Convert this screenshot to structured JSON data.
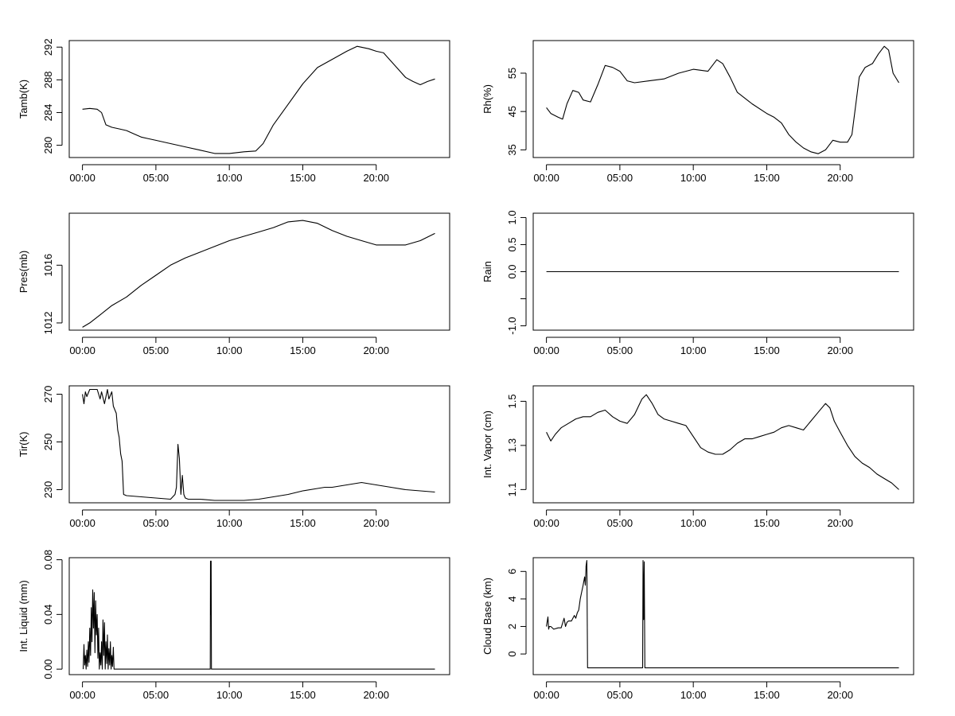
{
  "x_tick_labels": [
    "00:00",
    "05:00",
    "10:00",
    "15:00",
    "20:00"
  ],
  "chart_data": [
    {
      "type": "line",
      "ylabel": "Tamb(K)",
      "x_unit": "hours",
      "xlim": [
        -0.9,
        25.0
      ],
      "ylim": [
        278.5,
        292.8
      ],
      "yticks": [
        280,
        284,
        288,
        292
      ],
      "x": [
        0,
        0.5,
        1.0,
        1.3,
        1.6,
        2.0,
        2.5,
        3.0,
        3.5,
        4.0,
        4.5,
        5.0,
        6.0,
        7.0,
        8.0,
        9.0,
        10.0,
        11.0,
        11.8,
        12.3,
        13.0,
        14.0,
        15.0,
        16.0,
        17.0,
        18.0,
        18.7,
        19.5,
        20.0,
        20.5,
        21.0,
        21.5,
        22.0,
        22.5,
        23.0,
        23.5,
        24.0
      ],
      "y": [
        284.4,
        284.5,
        284.4,
        284.0,
        282.5,
        282.2,
        282.0,
        281.8,
        281.4,
        281.0,
        280.8,
        280.6,
        280.2,
        279.8,
        279.4,
        279.0,
        279.0,
        279.2,
        279.3,
        280.2,
        282.5,
        285.0,
        287.5,
        289.5,
        290.5,
        291.5,
        292.1,
        291.8,
        291.5,
        291.3,
        290.3,
        289.3,
        288.3,
        287.8,
        287.4,
        287.8,
        288.1
      ]
    },
    {
      "type": "line",
      "ylabel": "Rh(%)",
      "x_unit": "hours",
      "xlim": [
        -0.9,
        25.0
      ],
      "ylim": [
        33,
        63.5
      ],
      "yticks": [
        35,
        45,
        55
      ],
      "x": [
        0,
        0.3,
        0.8,
        1.1,
        1.4,
        1.8,
        2.2,
        2.5,
        3.0,
        3.5,
        4.0,
        4.5,
        5.0,
        5.5,
        6.0,
        7.0,
        8.0,
        9.0,
        10.0,
        11.0,
        11.6,
        12.0,
        12.5,
        13.0,
        14.0,
        15.0,
        15.5,
        16.0,
        16.5,
        17.0,
        17.5,
        18.0,
        18.5,
        19.0,
        19.5,
        20.0,
        20.5,
        20.8,
        21.0,
        21.3,
        21.7,
        22.2,
        22.6,
        23.0,
        23.3,
        23.6,
        24.0
      ],
      "y": [
        46.0,
        44.5,
        43.5,
        43.0,
        47.0,
        50.5,
        50.0,
        48.0,
        47.5,
        52.0,
        57.0,
        56.5,
        55.5,
        53.0,
        52.5,
        53.0,
        53.5,
        55.0,
        56.0,
        55.5,
        58.5,
        57.5,
        54.0,
        50.0,
        47.0,
        44.5,
        43.5,
        42.0,
        39.0,
        37.0,
        35.5,
        34.5,
        34.0,
        35.0,
        37.5,
        37.0,
        37.0,
        39.0,
        45.0,
        54.0,
        56.5,
        57.5,
        60.0,
        62.0,
        61.0,
        55.0,
        52.5
      ]
    },
    {
      "type": "line",
      "ylabel": "Pres(mb)",
      "x_unit": "hours",
      "xlim": [
        -0.9,
        25.0
      ],
      "ylim": [
        1011.5,
        1019.6
      ],
      "yticks": [
        1012,
        1016
      ],
      "x": [
        0,
        0.5,
        1.0,
        2.0,
        3.0,
        4.0,
        5.0,
        6.0,
        7.0,
        8.0,
        9.0,
        10.0,
        11.0,
        12.0,
        13.0,
        14.0,
        15.0,
        16.0,
        17.0,
        18.0,
        19.0,
        20.0,
        21.0,
        22.0,
        23.0,
        24.0
      ],
      "y": [
        1011.7,
        1012.0,
        1012.4,
        1013.2,
        1013.8,
        1014.6,
        1015.3,
        1016.0,
        1016.5,
        1016.9,
        1017.3,
        1017.7,
        1018.0,
        1018.3,
        1018.6,
        1019.0,
        1019.1,
        1018.9,
        1018.4,
        1018.0,
        1017.7,
        1017.4,
        1017.4,
        1017.4,
        1017.7,
        1018.2
      ]
    },
    {
      "type": "line",
      "ylabel": "Rain",
      "x_unit": "hours",
      "xlim": [
        -0.9,
        25.0
      ],
      "ylim": [
        -1.08,
        1.08
      ],
      "yticks": [
        -1.0,
        -0.5,
        0.0,
        0.5,
        1.0
      ],
      "ytick_labels": [
        "-1.0",
        "",
        "0.0",
        "0.5",
        "1.0"
      ],
      "x": [
        0,
        24
      ],
      "y": [
        0,
        0
      ]
    },
    {
      "type": "line",
      "ylabel": "Tir(K)",
      "x_unit": "hours",
      "xlim": [
        -0.9,
        25.0
      ],
      "ylim": [
        224.5,
        273.5
      ],
      "yticks": [
        230,
        250,
        270
      ],
      "x": [
        0,
        0.1,
        0.2,
        0.3,
        0.5,
        1.0,
        1.2,
        1.3,
        1.5,
        1.7,
        1.8,
        2.0,
        2.1,
        2.3,
        2.4,
        2.5,
        2.6,
        2.7,
        2.8,
        3.0,
        4.0,
        5.0,
        6.0,
        6.3,
        6.4,
        6.5,
        6.6,
        6.7,
        6.8,
        6.9,
        7.0,
        7.2,
        8.0,
        9.0,
        10.0,
        11.0,
        12.0,
        13.0,
        14.0,
        15.0,
        16.0,
        16.5,
        17.0,
        18.0,
        19.0,
        20.0,
        21.0,
        22.0,
        23.0,
        24.0
      ],
      "y": [
        270,
        266,
        271,
        269,
        272,
        272,
        268,
        271,
        266,
        272,
        268,
        271,
        265,
        262,
        255,
        252,
        245,
        242,
        228,
        227.5,
        227,
        226.5,
        226,
        228,
        231,
        249,
        243,
        228,
        236,
        228,
        226.5,
        226,
        226,
        225.5,
        225.5,
        225.5,
        226,
        227,
        228,
        229.5,
        230.5,
        231,
        231,
        232,
        233,
        232,
        231,
        230,
        229.5,
        229
      ]
    },
    {
      "type": "line",
      "ylabel": "Int. Vapor (cm)",
      "x_unit": "hours",
      "xlim": [
        -0.9,
        25.0
      ],
      "ylim": [
        1.04,
        1.57
      ],
      "yticks": [
        1.1,
        1.3,
        1.5
      ],
      "x": [
        0,
        0.3,
        0.6,
        1.0,
        1.5,
        2.0,
        2.5,
        3.0,
        3.5,
        4.0,
        4.5,
        5.0,
        5.5,
        6.0,
        6.5,
        6.8,
        7.2,
        7.6,
        8.0,
        8.5,
        9.0,
        9.5,
        10.0,
        10.5,
        11.0,
        11.5,
        12.0,
        12.5,
        13.0,
        13.5,
        14.0,
        14.5,
        15.0,
        15.5,
        16.0,
        16.5,
        17.0,
        17.5,
        18.0,
        18.5,
        19.0,
        19.3,
        19.6,
        20.0,
        20.5,
        21.0,
        21.5,
        22.0,
        22.5,
        23.0,
        23.5,
        24.0
      ],
      "y": [
        1.36,
        1.32,
        1.35,
        1.38,
        1.4,
        1.42,
        1.43,
        1.43,
        1.45,
        1.46,
        1.43,
        1.41,
        1.4,
        1.44,
        1.51,
        1.53,
        1.49,
        1.44,
        1.42,
        1.41,
        1.4,
        1.39,
        1.34,
        1.29,
        1.27,
        1.26,
        1.26,
        1.28,
        1.31,
        1.33,
        1.33,
        1.34,
        1.35,
        1.36,
        1.38,
        1.39,
        1.38,
        1.37,
        1.41,
        1.45,
        1.49,
        1.47,
        1.41,
        1.36,
        1.3,
        1.25,
        1.22,
        1.2,
        1.17,
        1.15,
        1.13,
        1.1
      ]
    },
    {
      "type": "line",
      "ylabel": "Int. Liquid (mm)",
      "x_unit": "hours",
      "xlim": [
        -0.9,
        25.0
      ],
      "ylim": [
        -0.004,
        0.0815
      ],
      "yticks": [
        0.0,
        0.04,
        0.08
      ],
      "x": [
        0.05,
        0.1,
        0.15,
        0.2,
        0.25,
        0.3,
        0.35,
        0.4,
        0.45,
        0.5,
        0.55,
        0.6,
        0.65,
        0.7,
        0.75,
        0.8,
        0.85,
        0.9,
        0.95,
        1.0,
        1.05,
        1.1,
        1.15,
        1.2,
        1.25,
        1.3,
        1.35,
        1.4,
        1.45,
        1.5,
        1.55,
        1.6,
        1.65,
        1.7,
        1.75,
        1.8,
        1.85,
        1.9,
        1.95,
        2.0,
        2.05,
        2.1,
        2.15,
        2.2,
        3.0,
        5.0,
        8.0,
        8.7,
        8.72,
        8.74,
        8.76,
        8.78,
        8.8,
        9.0,
        12.0,
        16.0,
        20.0,
        24.0
      ],
      "y": [
        0.0,
        0.018,
        0.003,
        0.01,
        0.0,
        0.014,
        0.002,
        0.02,
        0.005,
        0.03,
        0.01,
        0.045,
        0.02,
        0.058,
        0.03,
        0.056,
        0.012,
        0.05,
        0.025,
        0.04,
        0.008,
        0.03,
        0.0,
        0.012,
        0.003,
        0.02,
        0.0,
        0.036,
        0.01,
        0.034,
        0.0,
        0.02,
        0.004,
        0.025,
        0.0,
        0.015,
        0.003,
        0.02,
        0.0,
        0.01,
        0.002,
        0.016,
        0.0,
        0.0,
        0.0,
        0.0,
        0.0,
        0.0,
        0.079,
        0.04,
        0.079,
        0.0,
        0.0,
        0.0,
        0.0,
        0.0,
        0.0,
        0.0
      ]
    },
    {
      "type": "line",
      "ylabel": "Cloud Base (km)",
      "x_unit": "hours",
      "xlim": [
        -0.9,
        25.0
      ],
      "ylim": [
        -1.5,
        7.0
      ],
      "yticks": [
        0,
        2,
        4,
        6
      ],
      "x": [
        0,
        0.1,
        0.15,
        0.2,
        0.3,
        0.5,
        0.8,
        1.0,
        1.2,
        1.3,
        1.4,
        1.5,
        1.7,
        1.9,
        2.0,
        2.1,
        2.2,
        2.3,
        2.4,
        2.5,
        2.6,
        2.65,
        2.7,
        2.75,
        2.8,
        3.0,
        6.0,
        6.55,
        6.58,
        6.62,
        6.66,
        6.7,
        6.8,
        8.0,
        12.0,
        16.0,
        20.0,
        24.0
      ],
      "y": [
        2.0,
        2.7,
        1.8,
        2.0,
        2.0,
        1.8,
        1.9,
        1.9,
        2.6,
        2.0,
        2.3,
        2.4,
        2.4,
        2.8,
        2.6,
        3.0,
        3.2,
        4.0,
        4.5,
        5.0,
        5.6,
        5.0,
        6.4,
        6.8,
        -1.0,
        -1.0,
        -1.0,
        -1.0,
        6.8,
        2.5,
        6.7,
        -1.0,
        -1.0,
        -1.0,
        -1.0,
        -1.0,
        -1.0,
        -1.0
      ]
    }
  ]
}
